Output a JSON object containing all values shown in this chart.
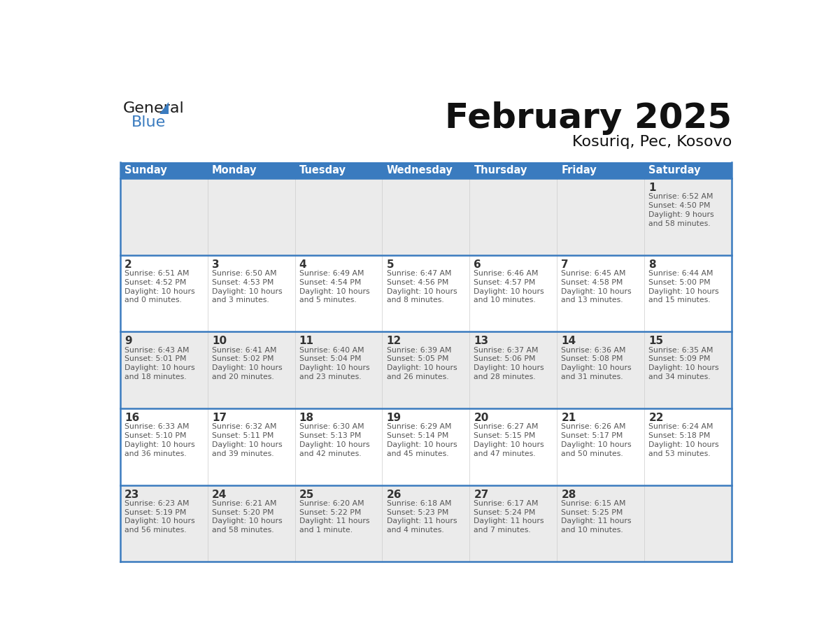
{
  "title": "February 2025",
  "subtitle": "Kosuriq, Pec, Kosovo",
  "days_of_week": [
    "Sunday",
    "Monday",
    "Tuesday",
    "Wednesday",
    "Thursday",
    "Friday",
    "Saturday"
  ],
  "header_bg": "#3a7bbf",
  "header_text": "#ffffff",
  "row_bg_odd": "#ebebeb",
  "row_bg_even": "#ffffff",
  "border_color": "#3a7bbf",
  "day_num_color": "#333333",
  "text_color": "#555555",
  "calendar_data": [
    {
      "day": 1,
      "col": 6,
      "row": 0,
      "sunrise": "6:52 AM",
      "sunset": "4:50 PM",
      "daylight": "9 hours and 58 minutes"
    },
    {
      "day": 2,
      "col": 0,
      "row": 1,
      "sunrise": "6:51 AM",
      "sunset": "4:52 PM",
      "daylight": "10 hours and 0 minutes"
    },
    {
      "day": 3,
      "col": 1,
      "row": 1,
      "sunrise": "6:50 AM",
      "sunset": "4:53 PM",
      "daylight": "10 hours and 3 minutes"
    },
    {
      "day": 4,
      "col": 2,
      "row": 1,
      "sunrise": "6:49 AM",
      "sunset": "4:54 PM",
      "daylight": "10 hours and 5 minutes"
    },
    {
      "day": 5,
      "col": 3,
      "row": 1,
      "sunrise": "6:47 AM",
      "sunset": "4:56 PM",
      "daylight": "10 hours and 8 minutes"
    },
    {
      "day": 6,
      "col": 4,
      "row": 1,
      "sunrise": "6:46 AM",
      "sunset": "4:57 PM",
      "daylight": "10 hours and 10 minutes"
    },
    {
      "day": 7,
      "col": 5,
      "row": 1,
      "sunrise": "6:45 AM",
      "sunset": "4:58 PM",
      "daylight": "10 hours and 13 minutes"
    },
    {
      "day": 8,
      "col": 6,
      "row": 1,
      "sunrise": "6:44 AM",
      "sunset": "5:00 PM",
      "daylight": "10 hours and 15 minutes"
    },
    {
      "day": 9,
      "col": 0,
      "row": 2,
      "sunrise": "6:43 AM",
      "sunset": "5:01 PM",
      "daylight": "10 hours and 18 minutes"
    },
    {
      "day": 10,
      "col": 1,
      "row": 2,
      "sunrise": "6:41 AM",
      "sunset": "5:02 PM",
      "daylight": "10 hours and 20 minutes"
    },
    {
      "day": 11,
      "col": 2,
      "row": 2,
      "sunrise": "6:40 AM",
      "sunset": "5:04 PM",
      "daylight": "10 hours and 23 minutes"
    },
    {
      "day": 12,
      "col": 3,
      "row": 2,
      "sunrise": "6:39 AM",
      "sunset": "5:05 PM",
      "daylight": "10 hours and 26 minutes"
    },
    {
      "day": 13,
      "col": 4,
      "row": 2,
      "sunrise": "6:37 AM",
      "sunset": "5:06 PM",
      "daylight": "10 hours and 28 minutes"
    },
    {
      "day": 14,
      "col": 5,
      "row": 2,
      "sunrise": "6:36 AM",
      "sunset": "5:08 PM",
      "daylight": "10 hours and 31 minutes"
    },
    {
      "day": 15,
      "col": 6,
      "row": 2,
      "sunrise": "6:35 AM",
      "sunset": "5:09 PM",
      "daylight": "10 hours and 34 minutes"
    },
    {
      "day": 16,
      "col": 0,
      "row": 3,
      "sunrise": "6:33 AM",
      "sunset": "5:10 PM",
      "daylight": "10 hours and 36 minutes"
    },
    {
      "day": 17,
      "col": 1,
      "row": 3,
      "sunrise": "6:32 AM",
      "sunset": "5:11 PM",
      "daylight": "10 hours and 39 minutes"
    },
    {
      "day": 18,
      "col": 2,
      "row": 3,
      "sunrise": "6:30 AM",
      "sunset": "5:13 PM",
      "daylight": "10 hours and 42 minutes"
    },
    {
      "day": 19,
      "col": 3,
      "row": 3,
      "sunrise": "6:29 AM",
      "sunset": "5:14 PM",
      "daylight": "10 hours and 45 minutes"
    },
    {
      "day": 20,
      "col": 4,
      "row": 3,
      "sunrise": "6:27 AM",
      "sunset": "5:15 PM",
      "daylight": "10 hours and 47 minutes"
    },
    {
      "day": 21,
      "col": 5,
      "row": 3,
      "sunrise": "6:26 AM",
      "sunset": "5:17 PM",
      "daylight": "10 hours and 50 minutes"
    },
    {
      "day": 22,
      "col": 6,
      "row": 3,
      "sunrise": "6:24 AM",
      "sunset": "5:18 PM",
      "daylight": "10 hours and 53 minutes"
    },
    {
      "day": 23,
      "col": 0,
      "row": 4,
      "sunrise": "6:23 AM",
      "sunset": "5:19 PM",
      "daylight": "10 hours and 56 minutes"
    },
    {
      "day": 24,
      "col": 1,
      "row": 4,
      "sunrise": "6:21 AM",
      "sunset": "5:20 PM",
      "daylight": "10 hours and 58 minutes"
    },
    {
      "day": 25,
      "col": 2,
      "row": 4,
      "sunrise": "6:20 AM",
      "sunset": "5:22 PM",
      "daylight": "11 hours and 1 minute"
    },
    {
      "day": 26,
      "col": 3,
      "row": 4,
      "sunrise": "6:18 AM",
      "sunset": "5:23 PM",
      "daylight": "11 hours and 4 minutes"
    },
    {
      "day": 27,
      "col": 4,
      "row": 4,
      "sunrise": "6:17 AM",
      "sunset": "5:24 PM",
      "daylight": "11 hours and 7 minutes"
    },
    {
      "day": 28,
      "col": 5,
      "row": 4,
      "sunrise": "6:15 AM",
      "sunset": "5:25 PM",
      "daylight": "11 hours and 10 minutes"
    }
  ],
  "logo_general_color": "#1a1a1a",
  "logo_blue_color": "#3a7bbf",
  "logo_triangle_color": "#3a7bbf",
  "fig_width": 11.88,
  "fig_height": 9.18,
  "dpi": 100
}
